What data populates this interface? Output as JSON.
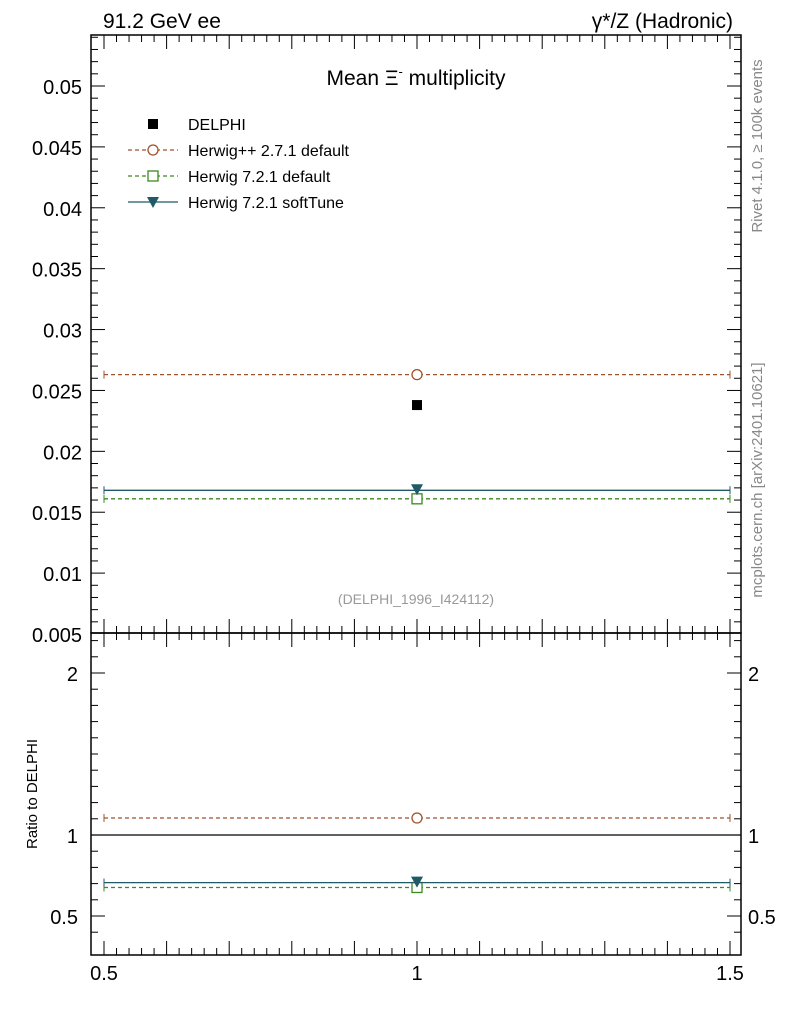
{
  "header": {
    "left_label": "91.2 GeV ee",
    "right_label": "γ*/Z (Hadronic)"
  },
  "side_labels": {
    "rivet": "Rivet 4.1.0, ≥ 100k events",
    "mcplots": "mcplots.cern.ch [arXiv:2401.10621]"
  },
  "colors": {
    "data": "#000000",
    "herwigpp": "#a0522d",
    "herwig721": "#3a8a1f",
    "softtune": "#1f5a66",
    "axis": "#000000",
    "watermark": "#999999"
  },
  "chart_data": [
    {
      "type": "scatter",
      "panel": "main",
      "title": "Mean Ξ⁻ multiplicity",
      "title_main": "Mean Ξ",
      "title_sup": "-",
      "title_rest": " multiplicity",
      "analysis_label": "(DELPHI_1996_I424112)",
      "xlim": [
        0.5,
        1.5
      ],
      "ylim": [
        0.005,
        0.054
      ],
      "yticks": [
        0.005,
        0.01,
        0.015,
        0.02,
        0.025,
        0.03,
        0.035,
        0.04,
        0.045,
        0.05
      ],
      "ytick_labels": [
        "0.005",
        "0.01",
        "0.015",
        "0.02",
        "0.025",
        "0.03",
        "0.035",
        "0.04",
        "0.045",
        "0.05"
      ],
      "legend_position": "top-left",
      "series": [
        {
          "name": "DELPHI",
          "key": "data",
          "marker": "square-filled",
          "line": "none",
          "x": [
            1.0
          ],
          "y": [
            0.0238
          ]
        },
        {
          "name": "Herwig++ 2.7.1 default",
          "key": "herwigpp",
          "marker": "circle-open",
          "line": "dashed",
          "x": [
            0.5,
            1.5
          ],
          "y": [
            0.0263,
            0.0263
          ],
          "marker_x": 1.0
        },
        {
          "name": "Herwig 7.2.1 default",
          "key": "herwig721",
          "marker": "square-open",
          "line": "dashed",
          "x": [
            0.5,
            1.5
          ],
          "y": [
            0.0161,
            0.0161
          ],
          "marker_x": 1.0
        },
        {
          "name": "Herwig 7.2.1 softTune",
          "key": "softtune",
          "marker": "triangle-down-filled",
          "line": "solid",
          "x": [
            0.5,
            1.5
          ],
          "y": [
            0.0168,
            0.0168
          ],
          "marker_x": 1.0
        }
      ]
    },
    {
      "type": "scatter",
      "panel": "ratio",
      "ylabel": "Ratio to DELPHI",
      "xlim": [
        0.5,
        1.5
      ],
      "ylim": [
        0.35,
        2.35
      ],
      "yticks": [
        0.5,
        1,
        2
      ],
      "ytick_labels": [
        "0.5",
        "1",
        "2"
      ],
      "xticks": [
        0.5,
        1,
        1.5
      ],
      "xtick_labels": [
        "0.5",
        "1",
        "1.5"
      ],
      "reference_line": 1.0,
      "series": [
        {
          "name": "Herwig++ 2.7.1 default",
          "key": "herwigpp",
          "marker": "circle-open",
          "line": "dashed",
          "y": 1.105
        },
        {
          "name": "Herwig 7.2.1 default",
          "key": "herwig721",
          "marker": "square-open",
          "line": "dashed",
          "y": 0.676
        },
        {
          "name": "Herwig 7.2.1 softTune",
          "key": "softtune",
          "marker": "triangle-down-filled",
          "line": "solid",
          "y": 0.706
        }
      ]
    }
  ]
}
